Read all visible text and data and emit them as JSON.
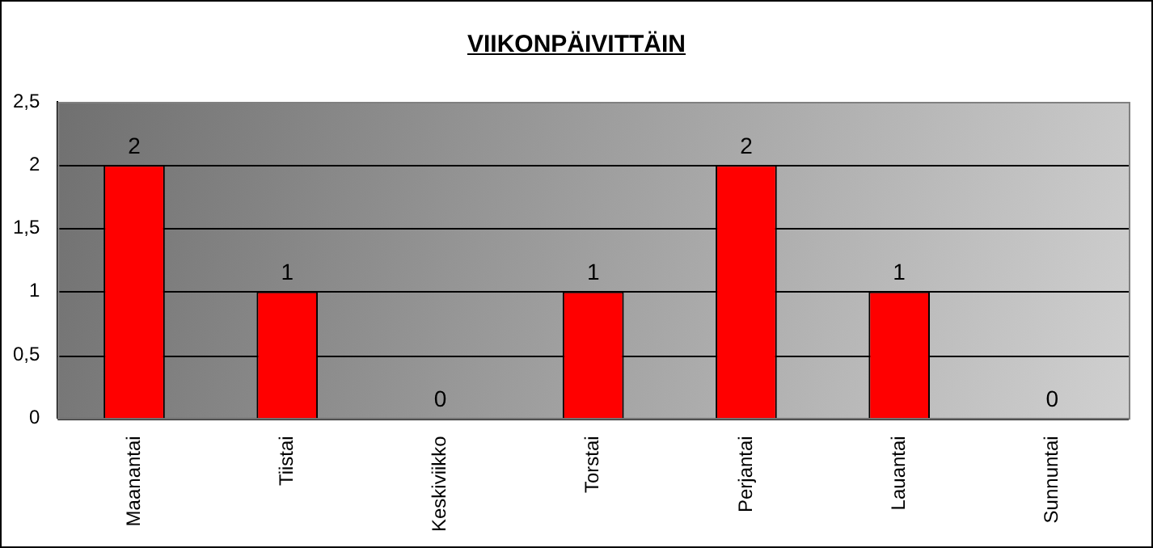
{
  "chart_data": {
    "type": "bar",
    "title": "VIIKONPÄIVITTÄIN",
    "categories": [
      "Maanantai",
      "Tiistai",
      "Keskiviikko",
      "Torstai",
      "Perjantai",
      "Lauantai",
      "Sunnuntai"
    ],
    "values": [
      2,
      1,
      0,
      1,
      2,
      1,
      0
    ],
    "color": "#ff0000",
    "ylim": [
      0,
      2.5
    ],
    "yticks": [
      0,
      {
        "value": 0.5,
        "label": "0,5"
      },
      1,
      {
        "value": 1.5,
        "label": "1,5"
      },
      2,
      {
        "value": 2.5,
        "label": "2,5"
      }
    ],
    "grid": "y",
    "data_labels": true
  }
}
